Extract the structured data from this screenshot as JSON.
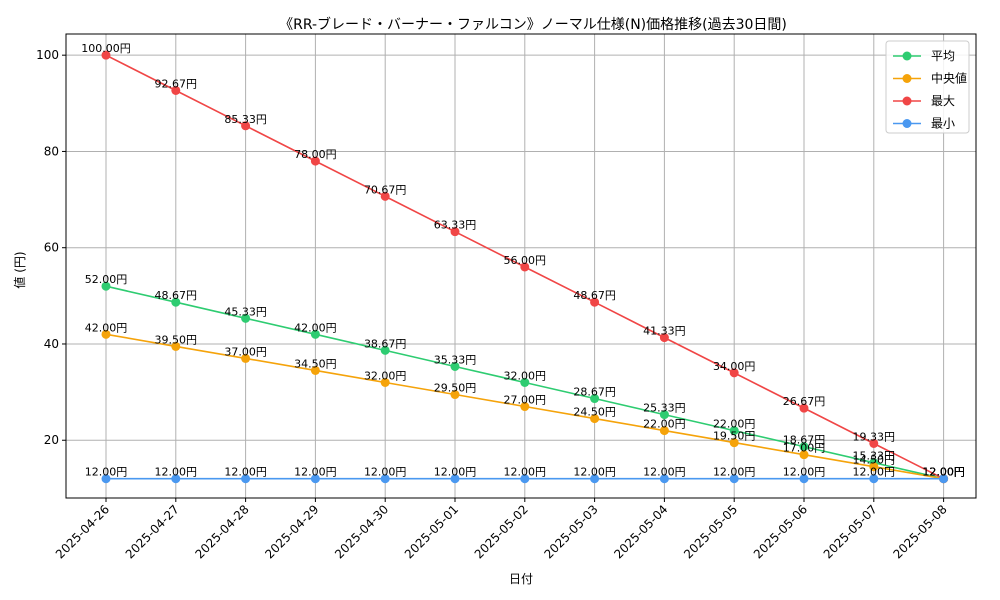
{
  "chart_data": {
    "type": "line",
    "title": "《RR-ブレード・バーナー・ファルコン》ノーマル仕様(N)価格推移(過去30日間)",
    "xlabel": "日付",
    "ylabel": "値 (円)",
    "x": [
      "2025-04-26",
      "2025-04-27",
      "2025-04-28",
      "2025-04-29",
      "2025-04-30",
      "2025-05-01",
      "2025-05-02",
      "2025-05-03",
      "2025-05-04",
      "2025-05-05",
      "2025-05-06",
      "2025-05-07",
      "2025-05-08"
    ],
    "ylim": [
      8,
      104.4
    ],
    "yticks": [
      20,
      40,
      60,
      80,
      100
    ],
    "grid": true,
    "legend_position": "top-right",
    "value_suffix": "円",
    "series": [
      {
        "name": "平均",
        "color": "#2ecc71",
        "values": [
          52.0,
          48.67,
          45.33,
          42.0,
          38.67,
          35.33,
          32.0,
          28.67,
          25.33,
          22.0,
          18.67,
          15.33,
          12.0
        ]
      },
      {
        "name": "中央値",
        "color": "#f5a30a",
        "values": [
          42.0,
          39.5,
          37.0,
          34.5,
          32.0,
          29.5,
          27.0,
          24.5,
          22.0,
          19.5,
          17.0,
          14.5,
          12.0
        ]
      },
      {
        "name": "最大",
        "color": "#f04646",
        "values": [
          100.0,
          92.67,
          85.33,
          78.0,
          70.67,
          63.33,
          56.0,
          48.67,
          41.33,
          34.0,
          26.67,
          19.33,
          12.0
        ]
      },
      {
        "name": "最小",
        "color": "#4a98f0",
        "values": [
          12.0,
          12.0,
          12.0,
          12.0,
          12.0,
          12.0,
          12.0,
          12.0,
          12.0,
          12.0,
          12.0,
          12.0,
          12.0
        ]
      }
    ]
  }
}
